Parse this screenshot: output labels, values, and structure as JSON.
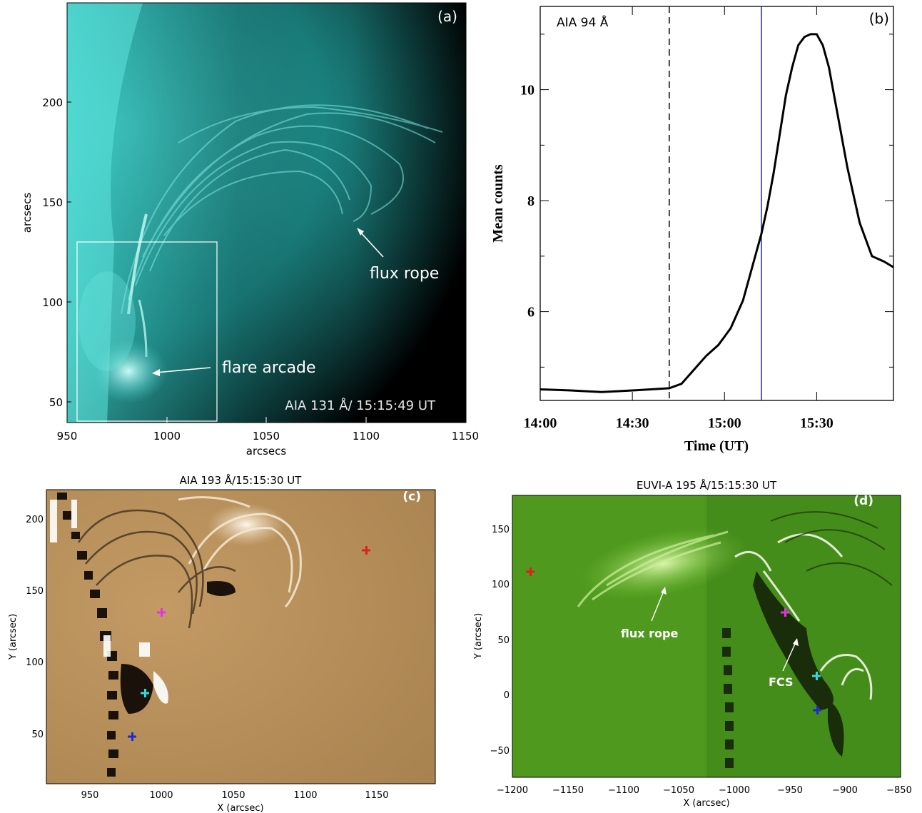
{
  "panel_a": {
    "tag": "(a)",
    "caption": "AIA 131 Å/ 15:15:49 UT",
    "flux_rope_label": "flux rope",
    "flare_arcade_label": "flare arcade",
    "xlabel": "arcsecs",
    "ylabel": "arcsecs",
    "xticks": [
      "950",
      "1000",
      "1050",
      "1100",
      "1150"
    ],
    "yticks": [
      "200",
      "150",
      "100",
      "50"
    ],
    "colors": {
      "image": "#3fd6d0",
      "dark": "#000000"
    }
  },
  "panel_b": {
    "tag": "(b)",
    "chart_label": "AIA 94 Å",
    "chart_data": {
      "type": "line",
      "xlabel": "Time (UT)",
      "ylabel": "Mean counts",
      "xticks": [
        "14:00",
        "14:30",
        "15:00",
        "15:30"
      ],
      "yticks": [
        "10",
        "8",
        "6"
      ],
      "x_unit": "minutes after 14:00 UT",
      "xlim": [
        0,
        115
      ],
      "ylim": [
        4.4,
        11.5
      ],
      "dashed_line_x": 42,
      "blue_line_x": 72,
      "series": [
        {
          "x": [
            0,
            10,
            20,
            30,
            42,
            46,
            50,
            54,
            58,
            62,
            66,
            68,
            70,
            72,
            74,
            76,
            78,
            80,
            82,
            84,
            86,
            88,
            90,
            92,
            94,
            96,
            100,
            104,
            108,
            112,
            115
          ],
          "y": [
            4.6,
            4.58,
            4.55,
            4.58,
            4.62,
            4.7,
            4.95,
            5.2,
            5.4,
            5.7,
            6.2,
            6.6,
            7.0,
            7.4,
            7.9,
            8.5,
            9.2,
            9.9,
            10.4,
            10.8,
            10.95,
            11.0,
            11.0,
            10.8,
            10.4,
            9.8,
            8.6,
            7.6,
            7.0,
            6.9,
            6.8
          ],
          "color": "#000000"
        }
      ],
      "blue_line_color": "#1a2aa8"
    }
  },
  "panel_c": {
    "title": "AIA 193 Å/15:15:30 UT",
    "tag": "(c)",
    "xlabel": "X (arcsec)",
    "ylabel": "Y (arcsec)",
    "xticks": [
      "950",
      "1000",
      "1050",
      "1100",
      "1150"
    ],
    "yticks": [
      "200",
      "150",
      "100",
      "50"
    ],
    "colors": {
      "bg": "#b38a57",
      "red": "#e0201a",
      "magenta": "#e036e0",
      "cyan": "#35d8d8",
      "blue": "#1f2ad0"
    }
  },
  "panel_d": {
    "title": "EUVI-A 195 Å/15:15:30 UT",
    "tag": "(d)",
    "flux_rope_label": "flux rope",
    "fcs_label": "FCS",
    "xlabel": "X (arcsec)",
    "ylabel": "Y (arcsec)",
    "xticks": [
      "−1200",
      "−1150",
      "−1100",
      "−1050",
      "−1000",
      "−950",
      "−900",
      "−850"
    ],
    "yticks": [
      "150",
      "100",
      "50",
      "0",
      "−50"
    ],
    "colors": {
      "bg": "#4f9a1e",
      "red": "#e0201a",
      "magenta": "#e036e0",
      "cyan": "#35d8d8",
      "blue": "#1f2ad0"
    }
  }
}
